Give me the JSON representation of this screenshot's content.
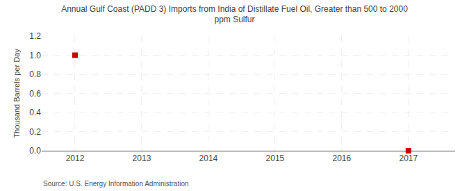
{
  "chart_data": {
    "type": "scatter",
    "title": "Annual Gulf Coast (PADD 3) Imports from India of Distillate Fuel Oil, Greater than 500 to 2000\nppm Sulfur",
    "ylabel": "Thousand Barrels per Day",
    "annotations": [
      "Source: U.S. Energy Information Administration"
    ],
    "x": [
      2012,
      2017
    ],
    "values": [
      1.0,
      0.0
    ],
    "color": "#cc0000",
    "marker": "square",
    "xlim": [
      2011.5,
      2017.7
    ],
    "xticks": [
      2012,
      2013,
      2014,
      2015,
      2016,
      2017
    ],
    "ylim": [
      0.0,
      1.2
    ],
    "yticks": [
      {
        "value": 0.0,
        "label": "0.0"
      },
      0.2,
      0.4,
      0.6,
      0.8,
      {
        "value": 1.0,
        "label": "1.0"
      },
      1.2
    ],
    "grid": true
  }
}
